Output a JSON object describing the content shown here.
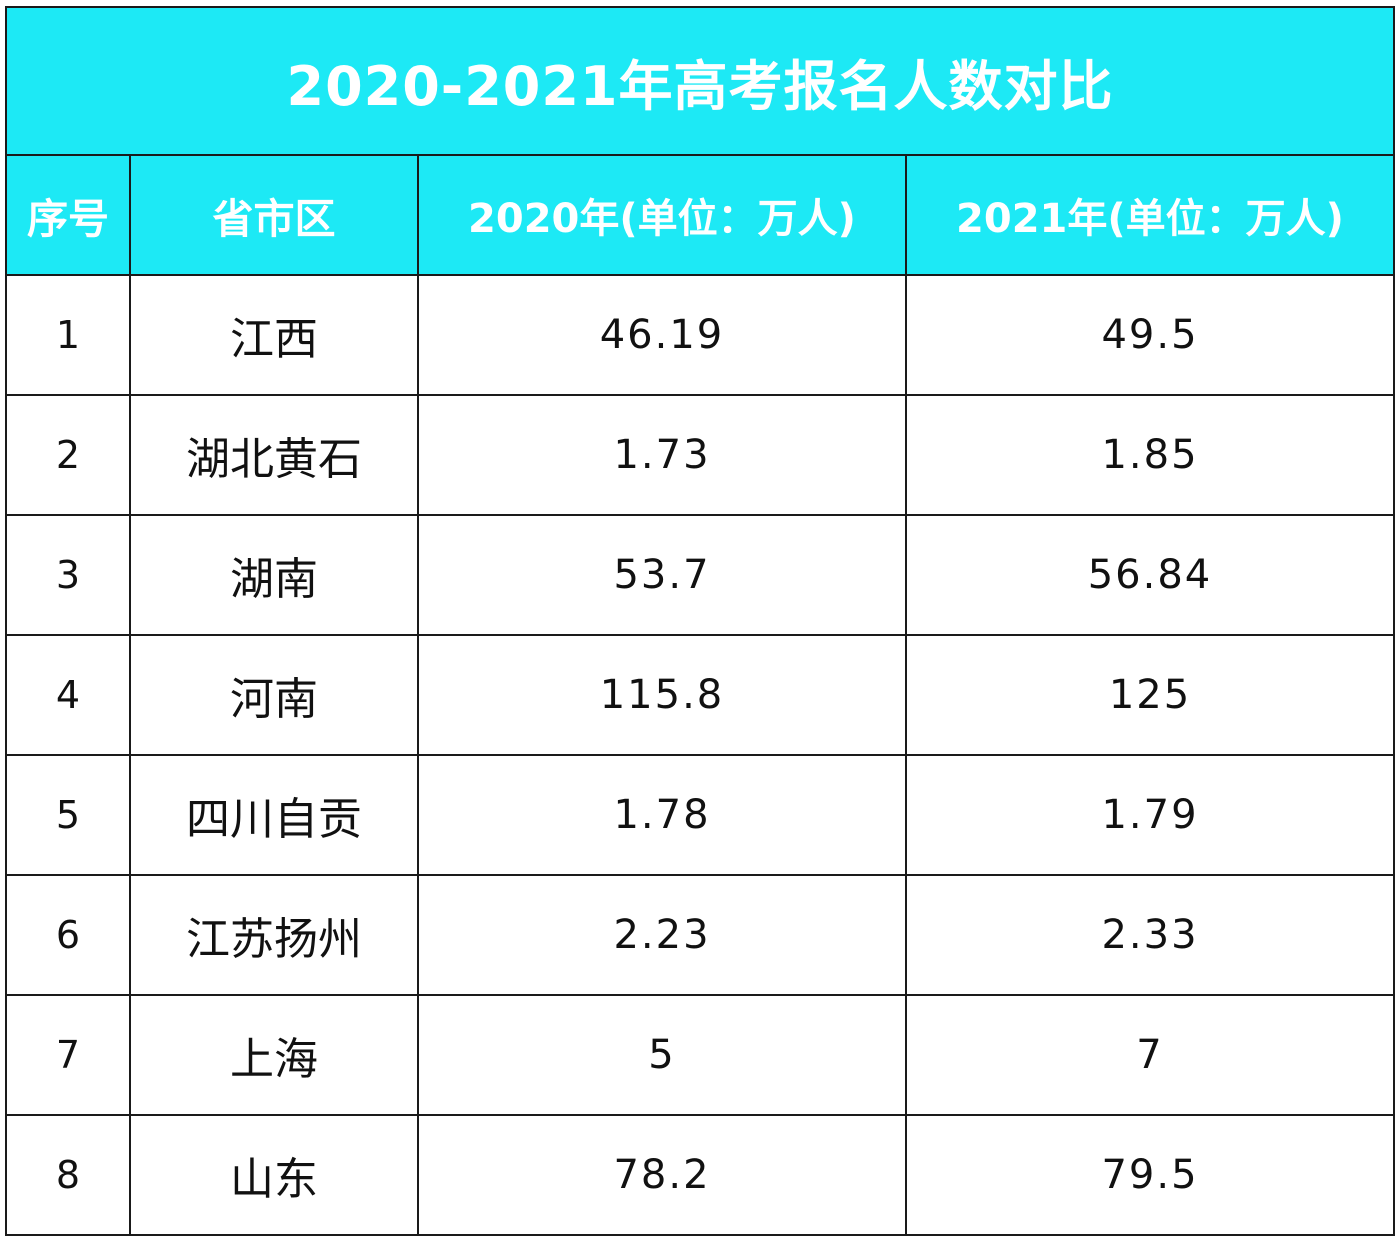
{
  "table": {
    "title": "2020-2021年高考报名人数对比",
    "header_color": "#1de9f5",
    "headers": [
      "序号",
      "省市区",
      "2020年(单位：万人)",
      "2021年(单位：万人)"
    ],
    "rows": [
      {
        "index": "1",
        "region": "江西",
        "y2020": "46.19",
        "y2021": "49.5"
      },
      {
        "index": "2",
        "region": "湖北黄石",
        "y2020": "1.73",
        "y2021": "1.85"
      },
      {
        "index": "3",
        "region": "湖南",
        "y2020": "53.7",
        "y2021": "56.84"
      },
      {
        "index": "4",
        "region": "河南",
        "y2020": "115.8",
        "y2021": "125"
      },
      {
        "index": "5",
        "region": "四川自贡",
        "y2020": "1.78",
        "y2021": "1.79"
      },
      {
        "index": "6",
        "region": "江苏扬州",
        "y2020": "2.23",
        "y2021": "2.33"
      },
      {
        "index": "7",
        "region": "上海",
        "y2020": "5",
        "y2021": "7"
      },
      {
        "index": "8",
        "region": "山东",
        "y2020": "78.2",
        "y2021": "79.5"
      }
    ]
  }
}
